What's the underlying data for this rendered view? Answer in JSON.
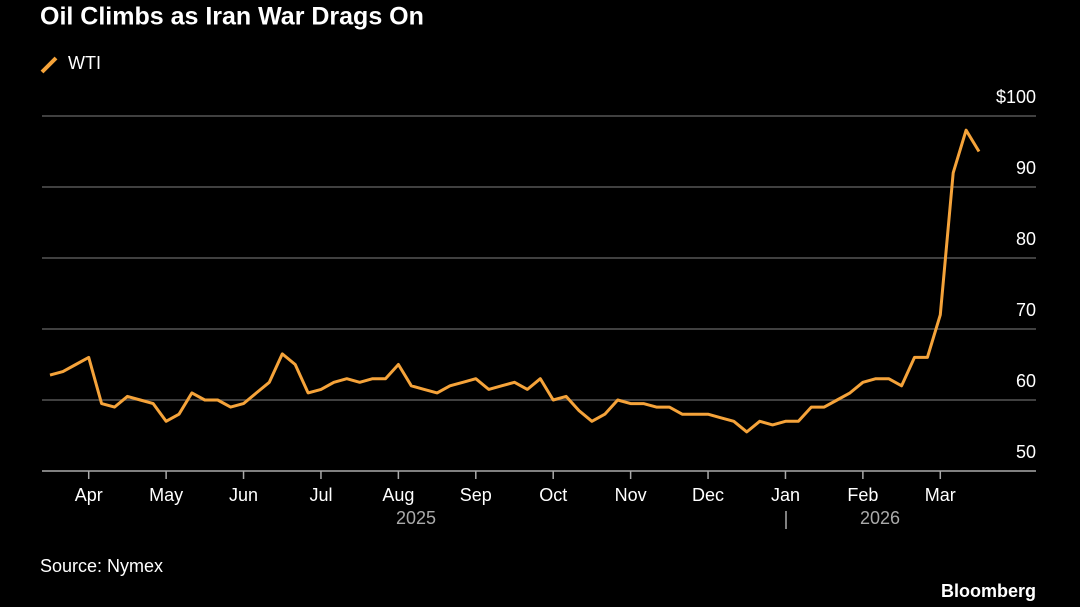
{
  "chart_data": {
    "type": "line",
    "title": "Oil Climbs as Iran War Drags On",
    "source": "Source: Nymex",
    "brand": "Bloomberg",
    "year_labels": [
      "2025",
      "2026"
    ],
    "categories": [
      null,
      null,
      null,
      "Apr",
      null,
      null,
      null,
      null,
      null,
      "May",
      null,
      null,
      null,
      null,
      null,
      "Jun",
      null,
      null,
      null,
      null,
      null,
      "Jul",
      null,
      null,
      null,
      null,
      null,
      "Aug",
      null,
      null,
      null,
      null,
      null,
      "Sep",
      null,
      null,
      null,
      null,
      null,
      "Oct",
      null,
      null,
      null,
      null,
      null,
      "Nov",
      null,
      null,
      null,
      null,
      null,
      "Dec",
      null,
      null,
      null,
      null,
      null,
      "Jan",
      null,
      null,
      null,
      null,
      null,
      "Feb",
      null,
      null,
      null,
      null,
      null,
      "Mar",
      null,
      null,
      null
    ],
    "series": [
      {
        "name": "WTI",
        "color": "#f5a33a",
        "values": [
          63.5,
          64,
          65,
          66,
          59.5,
          59,
          60.5,
          60,
          59.5,
          57,
          58,
          61,
          60,
          60,
          59,
          59.5,
          61,
          62.5,
          66.5,
          65,
          61,
          61.5,
          62.5,
          63,
          62.5,
          63,
          63,
          65,
          62,
          61.5,
          61,
          62,
          62.5,
          63,
          61.5,
          62,
          62.5,
          61.5,
          63,
          60,
          60.5,
          58.5,
          57,
          58,
          60,
          59.5,
          59.5,
          59,
          59,
          58,
          58,
          58,
          57.5,
          57,
          55.5,
          57,
          56.5,
          57,
          57,
          59,
          59,
          60,
          61,
          62.5,
          63,
          63,
          62,
          66,
          66,
          72,
          92,
          98,
          95
        ]
      }
    ],
    "ylim": [
      50,
      100
    ],
    "yticks": [
      50,
      60,
      70,
      80,
      90,
      {
        "value": 100,
        "label": "$100"
      }
    ],
    "grid": true
  }
}
